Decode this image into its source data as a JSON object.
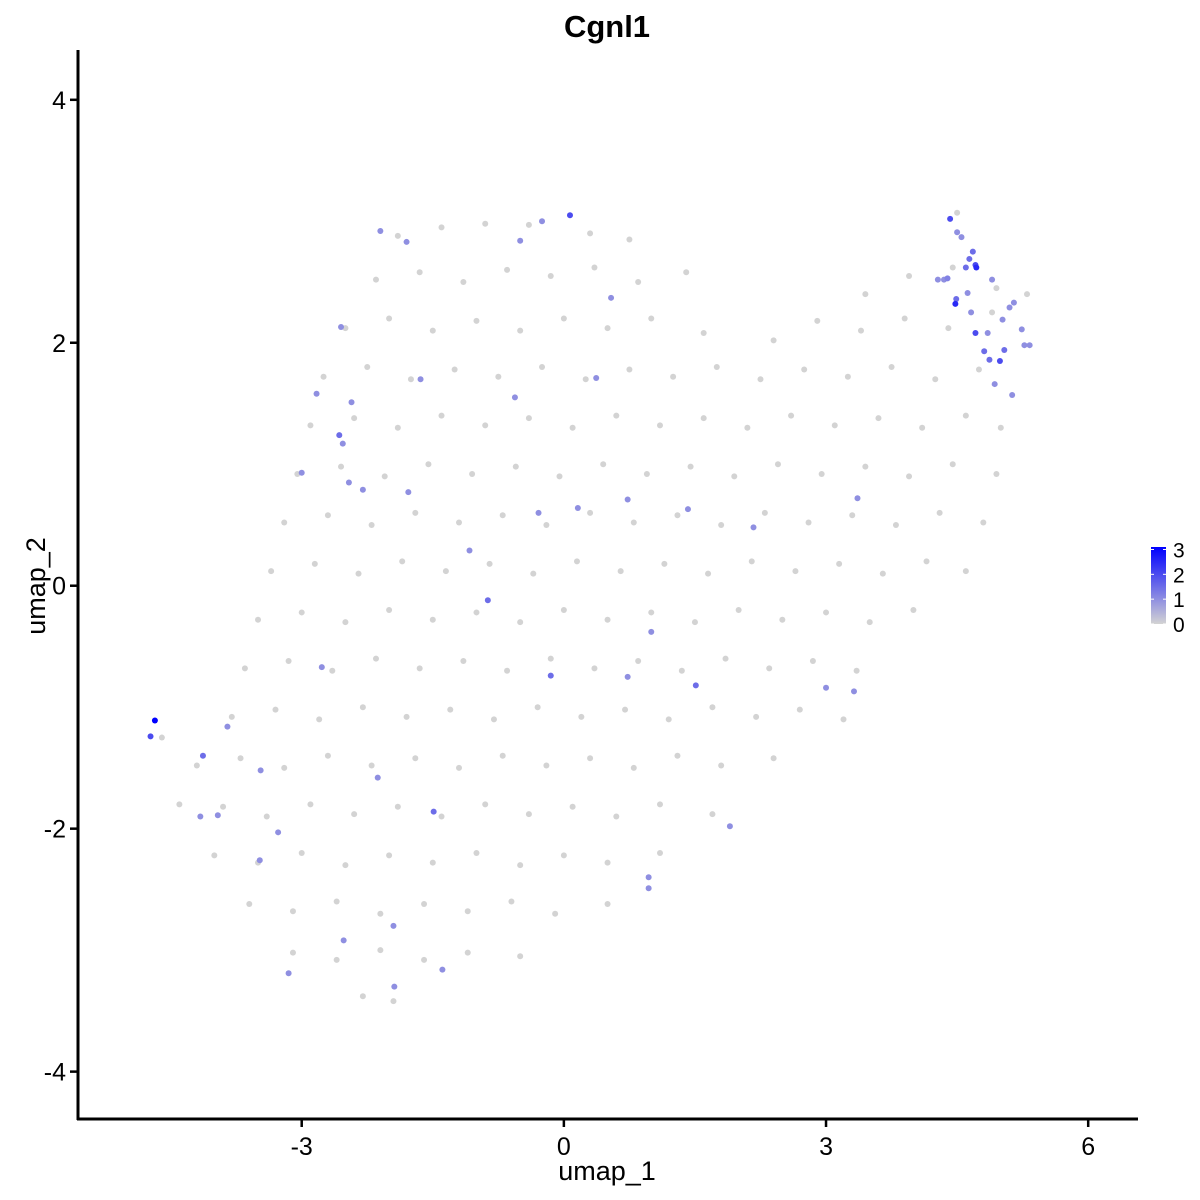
{
  "chart_data": {
    "type": "scatter",
    "title": "Cgnl1",
    "xlabel": "umap_1",
    "ylabel": "umap_2",
    "xlim": [
      -5.56,
      6.57
    ],
    "ylim": [
      -4.39,
      4.41
    ],
    "xticks": [
      -3,
      0,
      3,
      6
    ],
    "yticks": [
      -4,
      -2,
      0,
      2,
      4
    ],
    "grid": false,
    "legend": {
      "placement": "right",
      "min": 0,
      "max": 3.1,
      "ticks": [
        0,
        1,
        2,
        3
      ],
      "low_color": "#D3D3D3",
      "high_color": "#0000FF"
    },
    "grey_points": [
      [
        -1.9,
        2.88
      ],
      [
        -1.4,
        2.95
      ],
      [
        -0.9,
        2.98
      ],
      [
        -0.4,
        2.97
      ],
      [
        0.3,
        2.9
      ],
      [
        0.75,
        2.85
      ],
      [
        4.5,
        3.07
      ],
      [
        -2.15,
        2.52
      ],
      [
        -1.65,
        2.58
      ],
      [
        -1.15,
        2.5
      ],
      [
        -0.65,
        2.6
      ],
      [
        -0.15,
        2.55
      ],
      [
        0.35,
        2.62
      ],
      [
        0.85,
        2.5
      ],
      [
        1.4,
        2.58
      ],
      [
        3.45,
        2.4
      ],
      [
        3.95,
        2.55
      ],
      [
        4.45,
        2.62
      ],
      [
        4.95,
        2.45
      ],
      [
        5.3,
        2.4
      ],
      [
        -2.5,
        2.12
      ],
      [
        -2.0,
        2.2
      ],
      [
        -1.5,
        2.1
      ],
      [
        -1.0,
        2.18
      ],
      [
        -0.5,
        2.1
      ],
      [
        0.0,
        2.2
      ],
      [
        0.5,
        2.12
      ],
      [
        1.0,
        2.2
      ],
      [
        1.6,
        2.08
      ],
      [
        2.4,
        2.02
      ],
      [
        2.9,
        2.18
      ],
      [
        3.4,
        2.1
      ],
      [
        3.9,
        2.2
      ],
      [
        4.4,
        2.12
      ],
      [
        4.9,
        2.25
      ],
      [
        -2.75,
        1.72
      ],
      [
        -2.25,
        1.8
      ],
      [
        -1.75,
        1.7
      ],
      [
        -1.25,
        1.78
      ],
      [
        -0.75,
        1.72
      ],
      [
        -0.25,
        1.8
      ],
      [
        0.25,
        1.7
      ],
      [
        0.75,
        1.78
      ],
      [
        1.25,
        1.72
      ],
      [
        1.75,
        1.8
      ],
      [
        2.25,
        1.7
      ],
      [
        2.75,
        1.78
      ],
      [
        3.25,
        1.72
      ],
      [
        3.75,
        1.8
      ],
      [
        4.25,
        1.7
      ],
      [
        4.75,
        1.78
      ],
      [
        -2.9,
        1.32
      ],
      [
        -2.4,
        1.38
      ],
      [
        -1.9,
        1.3
      ],
      [
        -1.4,
        1.4
      ],
      [
        -0.9,
        1.32
      ],
      [
        -0.4,
        1.38
      ],
      [
        0.1,
        1.3
      ],
      [
        0.6,
        1.4
      ],
      [
        1.1,
        1.32
      ],
      [
        1.6,
        1.38
      ],
      [
        2.1,
        1.3
      ],
      [
        2.6,
        1.4
      ],
      [
        3.1,
        1.32
      ],
      [
        3.6,
        1.38
      ],
      [
        4.1,
        1.3
      ],
      [
        4.6,
        1.4
      ],
      [
        5.0,
        1.3
      ],
      [
        -3.05,
        0.92
      ],
      [
        -2.55,
        0.98
      ],
      [
        -2.05,
        0.9
      ],
      [
        -1.55,
        1.0
      ],
      [
        -1.05,
        0.92
      ],
      [
        -0.55,
        0.98
      ],
      [
        -0.05,
        0.9
      ],
      [
        0.45,
        1.0
      ],
      [
        0.95,
        0.92
      ],
      [
        1.45,
        0.98
      ],
      [
        1.95,
        0.9
      ],
      [
        2.45,
        1.0
      ],
      [
        2.95,
        0.92
      ],
      [
        3.45,
        0.98
      ],
      [
        3.95,
        0.9
      ],
      [
        4.45,
        1.0
      ],
      [
        4.95,
        0.92
      ],
      [
        -3.2,
        0.52
      ],
      [
        -2.7,
        0.58
      ],
      [
        -2.2,
        0.5
      ],
      [
        -1.7,
        0.6
      ],
      [
        -1.2,
        0.52
      ],
      [
        -0.7,
        0.58
      ],
      [
        -0.2,
        0.5
      ],
      [
        0.3,
        0.6
      ],
      [
        0.8,
        0.52
      ],
      [
        1.3,
        0.58
      ],
      [
        1.8,
        0.5
      ],
      [
        2.3,
        0.6
      ],
      [
        2.8,
        0.52
      ],
      [
        3.3,
        0.58
      ],
      [
        3.8,
        0.5
      ],
      [
        4.3,
        0.6
      ],
      [
        4.8,
        0.52
      ],
      [
        -3.35,
        0.12
      ],
      [
        -2.85,
        0.18
      ],
      [
        -2.35,
        0.1
      ],
      [
        -1.85,
        0.2
      ],
      [
        -1.35,
        0.12
      ],
      [
        -0.85,
        0.18
      ],
      [
        -0.35,
        0.1
      ],
      [
        0.15,
        0.2
      ],
      [
        0.65,
        0.12
      ],
      [
        1.15,
        0.18
      ],
      [
        1.65,
        0.1
      ],
      [
        2.15,
        0.2
      ],
      [
        2.65,
        0.12
      ],
      [
        3.15,
        0.18
      ],
      [
        3.65,
        0.1
      ],
      [
        4.15,
        0.2
      ],
      [
        4.6,
        0.12
      ],
      [
        -3.5,
        -0.28
      ],
      [
        -3.0,
        -0.22
      ],
      [
        -2.5,
        -0.3
      ],
      [
        -2.0,
        -0.2
      ],
      [
        -1.5,
        -0.28
      ],
      [
        -1.0,
        -0.22
      ],
      [
        -0.5,
        -0.3
      ],
      [
        0.0,
        -0.2
      ],
      [
        0.5,
        -0.28
      ],
      [
        1.0,
        -0.22
      ],
      [
        1.5,
        -0.3
      ],
      [
        2.0,
        -0.2
      ],
      [
        2.5,
        -0.28
      ],
      [
        3.0,
        -0.22
      ],
      [
        3.5,
        -0.3
      ],
      [
        4.0,
        -0.2
      ],
      [
        -3.65,
        -0.68
      ],
      [
        -3.15,
        -0.62
      ],
      [
        -2.65,
        -0.7
      ],
      [
        -2.15,
        -0.6
      ],
      [
        -1.65,
        -0.68
      ],
      [
        -1.15,
        -0.62
      ],
      [
        -0.65,
        -0.7
      ],
      [
        -0.15,
        -0.6
      ],
      [
        0.35,
        -0.68
      ],
      [
        0.85,
        -0.62
      ],
      [
        1.35,
        -0.7
      ],
      [
        1.85,
        -0.6
      ],
      [
        2.35,
        -0.68
      ],
      [
        2.85,
        -0.62
      ],
      [
        3.35,
        -0.7
      ],
      [
        -3.8,
        -1.08
      ],
      [
        -3.3,
        -1.02
      ],
      [
        -2.8,
        -1.1
      ],
      [
        -2.3,
        -1.0
      ],
      [
        -1.8,
        -1.08
      ],
      [
        -1.3,
        -1.02
      ],
      [
        -0.8,
        -1.1
      ],
      [
        -0.3,
        -1.0
      ],
      [
        0.2,
        -1.08
      ],
      [
        0.7,
        -1.02
      ],
      [
        1.2,
        -1.1
      ],
      [
        1.7,
        -1.0
      ],
      [
        2.2,
        -1.08
      ],
      [
        2.7,
        -1.02
      ],
      [
        3.2,
        -1.1
      ],
      [
        -4.6,
        -1.25
      ],
      [
        -4.2,
        -1.48
      ],
      [
        -3.7,
        -1.42
      ],
      [
        -3.2,
        -1.5
      ],
      [
        -2.7,
        -1.4
      ],
      [
        -2.2,
        -1.48
      ],
      [
        -1.7,
        -1.42
      ],
      [
        -1.2,
        -1.5
      ],
      [
        -0.7,
        -1.4
      ],
      [
        -0.2,
        -1.48
      ],
      [
        0.3,
        -1.42
      ],
      [
        0.8,
        -1.5
      ],
      [
        1.3,
        -1.4
      ],
      [
        1.8,
        -1.48
      ],
      [
        2.4,
        -1.42
      ],
      [
        -4.4,
        -1.8
      ],
      [
        -3.9,
        -1.82
      ],
      [
        -3.4,
        -1.9
      ],
      [
        -2.9,
        -1.8
      ],
      [
        -2.4,
        -1.88
      ],
      [
        -1.9,
        -1.82
      ],
      [
        -1.4,
        -1.9
      ],
      [
        -0.9,
        -1.8
      ],
      [
        -0.4,
        -1.88
      ],
      [
        0.1,
        -1.82
      ],
      [
        0.6,
        -1.9
      ],
      [
        1.1,
        -1.8
      ],
      [
        1.7,
        -1.88
      ],
      [
        -4.0,
        -2.22
      ],
      [
        -3.5,
        -2.28
      ],
      [
        -3.0,
        -2.2
      ],
      [
        -2.5,
        -2.3
      ],
      [
        -2.0,
        -2.22
      ],
      [
        -1.5,
        -2.28
      ],
      [
        -1.0,
        -2.2
      ],
      [
        -0.5,
        -2.3
      ],
      [
        0.0,
        -2.22
      ],
      [
        0.5,
        -2.28
      ],
      [
        1.1,
        -2.2
      ],
      [
        -3.6,
        -2.62
      ],
      [
        -3.1,
        -2.68
      ],
      [
        -2.6,
        -2.6
      ],
      [
        -2.1,
        -2.7
      ],
      [
        -1.6,
        -2.62
      ],
      [
        -1.1,
        -2.68
      ],
      [
        -0.6,
        -2.6
      ],
      [
        -0.1,
        -2.7
      ],
      [
        0.5,
        -2.62
      ],
      [
        -3.1,
        -3.02
      ],
      [
        -2.6,
        -3.08
      ],
      [
        -2.1,
        -3.0
      ],
      [
        -1.6,
        -3.08
      ],
      [
        -1.1,
        -3.02
      ],
      [
        -0.5,
        -3.05
      ],
      [
        -2.3,
        -3.38
      ],
      [
        -1.95,
        -3.42
      ]
    ],
    "expressing_points": [
      [
        4.42,
        3.02,
        2.0
      ],
      [
        4.5,
        2.91,
        1.0
      ],
      [
        4.55,
        2.87,
        1.0
      ],
      [
        4.68,
        2.75,
        1.5
      ],
      [
        4.64,
        2.69,
        1.5
      ],
      [
        4.71,
        2.64,
        2.0
      ],
      [
        4.6,
        2.62,
        1.5
      ],
      [
        4.72,
        2.62,
        2.5
      ],
      [
        4.28,
        2.52,
        1.0
      ],
      [
        4.35,
        2.52,
        1.0
      ],
      [
        4.39,
        2.53,
        1.2
      ],
      [
        4.49,
        2.36,
        1.5
      ],
      [
        4.48,
        2.32,
        2.5
      ],
      [
        4.62,
        2.41,
        1.0
      ],
      [
        4.66,
        2.25,
        1.0
      ],
      [
        4.9,
        2.52,
        1.0
      ],
      [
        5.15,
        2.33,
        1.0
      ],
      [
        5.1,
        2.29,
        1.0
      ],
      [
        5.24,
        2.11,
        1.0
      ],
      [
        5.02,
        2.19,
        1.0
      ],
      [
        4.85,
        2.08,
        1.0
      ],
      [
        4.71,
        2.08,
        2.0
      ],
      [
        4.81,
        1.93,
        1.5
      ],
      [
        5.04,
        1.94,
        1.5
      ],
      [
        4.99,
        1.85,
        2.0
      ],
      [
        4.87,
        1.86,
        1.5
      ],
      [
        4.93,
        1.66,
        1.0
      ],
      [
        5.13,
        1.57,
        1.0
      ],
      [
        5.33,
        1.98,
        1.0
      ],
      [
        5.27,
        1.98,
        1.0
      ],
      [
        -4.68,
        -1.11,
        3.1
      ],
      [
        -4.73,
        -1.24,
        2.0
      ],
      [
        -4.13,
        -1.4,
        1.5
      ],
      [
        -3.85,
        -1.16,
        1.0
      ],
      [
        -4.16,
        -1.9,
        1.0
      ],
      [
        -3.96,
        -1.89,
        1.0
      ],
      [
        -3.47,
        -1.52,
        1.0
      ],
      [
        0.07,
        3.05,
        2.0
      ],
      [
        -0.25,
        3.0,
        1.0
      ],
      [
        -0.5,
        2.84,
        1.0
      ],
      [
        0.54,
        2.37,
        1.0
      ],
      [
        -1.8,
        2.83,
        1.0
      ],
      [
        -2.1,
        2.92,
        1.0
      ],
      [
        -2.55,
        2.13,
        1.0
      ],
      [
        -2.83,
        1.58,
        1.0
      ],
      [
        -2.57,
        1.24,
        1.5
      ],
      [
        -2.53,
        1.17,
        1.0
      ],
      [
        -2.46,
        0.85,
        1.0
      ],
      [
        -2.3,
        0.79,
        1.0
      ],
      [
        -1.64,
        1.7,
        1.0
      ],
      [
        -2.43,
        1.51,
        1.0
      ],
      [
        -1.78,
        0.77,
        1.0
      ],
      [
        -3.0,
        0.93,
        1.0
      ],
      [
        -1.08,
        0.29,
        1.0
      ],
      [
        -0.87,
        -0.12,
        1.5
      ],
      [
        -0.15,
        -0.74,
        1.5
      ],
      [
        0.73,
        -0.75,
        1.0
      ],
      [
        1.0,
        -0.38,
        1.0
      ],
      [
        1.51,
        -0.82,
        1.5
      ],
      [
        0.37,
        1.71,
        1.0
      ],
      [
        0.16,
        0.64,
        1.0
      ],
      [
        0.73,
        0.71,
        1.0
      ],
      [
        1.42,
        0.63,
        1.0
      ],
      [
        2.17,
        0.48,
        1.0
      ],
      [
        3.36,
        0.72,
        1.0
      ],
      [
        -1.49,
        -1.86,
        1.5
      ],
      [
        -1.39,
        -3.16,
        1.0
      ],
      [
        -1.95,
        -2.8,
        1.0
      ],
      [
        -1.94,
        -3.3,
        1.0
      ],
      [
        -2.52,
        -2.92,
        1.0
      ],
      [
        -3.15,
        -3.19,
        1.0
      ],
      [
        -3.27,
        -2.03,
        1.0
      ],
      [
        -3.48,
        -2.26,
        1.0
      ],
      [
        0.97,
        -2.49,
        1.0
      ],
      [
        0.97,
        -2.4,
        1.0
      ],
      [
        1.9,
        -1.98,
        1.0
      ],
      [
        3.0,
        -0.84,
        1.0
      ],
      [
        3.32,
        -0.87,
        1.0
      ],
      [
        -2.13,
        -1.58,
        1.0
      ],
      [
        -2.77,
        -0.67,
        1.0
      ],
      [
        -0.56,
        1.55,
        1.0
      ],
      [
        -0.29,
        0.6,
        1.0
      ]
    ]
  }
}
